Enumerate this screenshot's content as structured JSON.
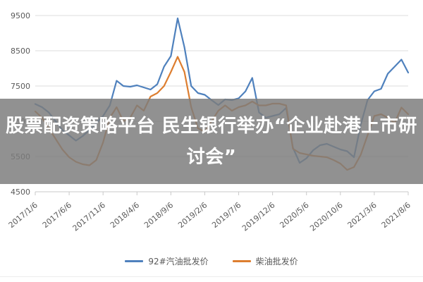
{
  "banner": {
    "text": "股票配资策略平台 民生银行举办“企业赴港上市研讨会”",
    "bg_color": "#7c7c7c",
    "text_color": "#ffffff"
  },
  "chart_data": {
    "type": "line",
    "title": "",
    "xlabel": "",
    "ylabel": "",
    "ylim": [
      4500,
      9500
    ],
    "y_ticks": [
      4500,
      5500,
      6500,
      7500,
      8500,
      9500
    ],
    "x_tick_labels": [
      "2017/1/6",
      "2017/6/6",
      "2017/11/6",
      "2018/4/6",
      "2018/9/6",
      "2019/2/6",
      "2019/7/6",
      "2019/12/6",
      "2020/5/6",
      "2020/10/6",
      "2021/3/6",
      "2021/8/6"
    ],
    "x": [
      "2017/1",
      "2017/2",
      "2017/3",
      "2017/4",
      "2017/5",
      "2017/6",
      "2017/7",
      "2017/8",
      "2017/9",
      "2017/10",
      "2017/11",
      "2017/12",
      "2018/1",
      "2018/2",
      "2018/3",
      "2018/4",
      "2018/5",
      "2018/6",
      "2018/7",
      "2018/8",
      "2018/9",
      "2018/10",
      "2018/11",
      "2018/12",
      "2019/1",
      "2019/2",
      "2019/3",
      "2019/4",
      "2019/5",
      "2019/6",
      "2019/7",
      "2019/8",
      "2019/9",
      "2019/10",
      "2019/11",
      "2019/12",
      "2020/1",
      "2020/2",
      "2020/3",
      "2020/4",
      "2020/5",
      "2020/6",
      "2020/7",
      "2020/8",
      "2020/9",
      "2020/10",
      "2020/11",
      "2020/12",
      "2021/1",
      "2021/2",
      "2021/3",
      "2021/4",
      "2021/5",
      "2021/6",
      "2021/7",
      "2021/8"
    ],
    "grid": true,
    "legend_position": "bottom",
    "series": [
      {
        "name": "92#汽油批发价",
        "color": "#4f81bd",
        "values": [
          6990,
          6900,
          6750,
          6500,
          6250,
          6100,
          5950,
          6080,
          6250,
          6450,
          6650,
          6950,
          7650,
          7500,
          7480,
          7520,
          7460,
          7400,
          7550,
          8050,
          8350,
          9420,
          8600,
          7500,
          7300,
          7250,
          7100,
          6960,
          7120,
          7100,
          7150,
          7350,
          7730,
          6750,
          6600,
          6650,
          6700,
          6880,
          5750,
          5320,
          5450,
          5680,
          5820,
          5860,
          5780,
          5700,
          5650,
          5480,
          6400,
          7100,
          7350,
          7420,
          7850,
          8050,
          8250,
          7880
        ]
      },
      {
        "name": "柴油批发价",
        "color": "#dd7e30",
        "values": [
          6780,
          6600,
          6300,
          6000,
          5700,
          5480,
          5350,
          5280,
          5250,
          5400,
          5900,
          6600,
          6900,
          6500,
          6600,
          6950,
          6800,
          7200,
          7300,
          7500,
          7900,
          8330,
          7900,
          6900,
          6300,
          6200,
          6500,
          6800,
          6950,
          6800,
          6900,
          6950,
          7060,
          6950,
          6950,
          7000,
          7000,
          6950,
          5720,
          5600,
          5560,
          5520,
          5500,
          5480,
          5400,
          5300,
          5120,
          5200,
          5550,
          6100,
          6650,
          6700,
          6600,
          6450,
          6890,
          6700
        ]
      }
    ],
    "axis_text_color": "#595959",
    "gridline_color": "#dcdcdc",
    "axis_line_color": "#c9c9c9"
  }
}
